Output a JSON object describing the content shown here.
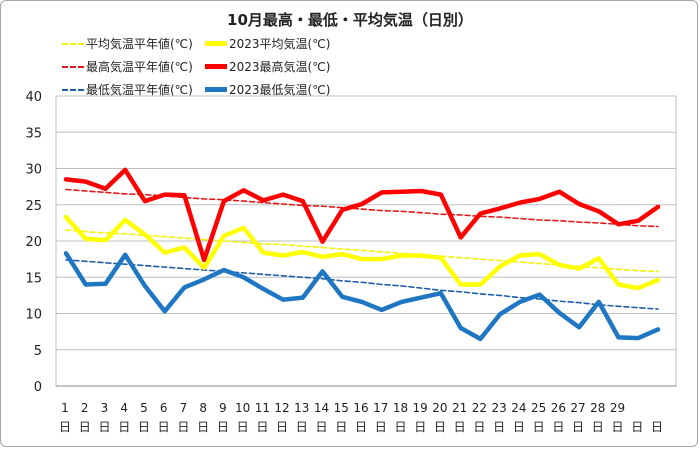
{
  "chart_data": {
    "type": "line",
    "title": "10月最高・最低・平均気温（日別）",
    "ylim": [
      0,
      40
    ],
    "yticks": [
      0,
      5,
      10,
      15,
      20,
      25,
      30,
      35,
      40
    ],
    "grid": true,
    "legend_position": "top",
    "x_tick_labels": [
      "1",
      "2",
      "3",
      "4",
      "5",
      "6",
      "7",
      "8",
      "9",
      "10",
      "11",
      "12",
      "13",
      "14",
      "15",
      "16",
      "17",
      "18",
      "19",
      "20",
      "21",
      "22",
      "23",
      "24",
      "25",
      "26",
      "27",
      "28",
      "29",
      "",
      ""
    ],
    "x_tick_suffix": "日",
    "series": [
      {
        "name": "平均気温平年値(℃)",
        "color": "#f2f20a",
        "style": "dashed",
        "values": [
          21.5,
          21.3,
          21.1,
          21.0,
          20.8,
          20.6,
          20.4,
          20.2,
          20.0,
          19.8,
          19.6,
          19.5,
          19.3,
          19.1,
          18.9,
          18.7,
          18.5,
          18.3,
          18.1,
          17.9,
          17.7,
          17.5,
          17.3,
          17.1,
          16.9,
          16.7,
          16.5,
          16.3,
          16.1,
          15.9,
          15.8
        ]
      },
      {
        "name": "2023平均気温(℃)",
        "color": "#ffff00",
        "style": "solid",
        "values": [
          23.3,
          20.3,
          20.1,
          22.9,
          20.9,
          18.4,
          19.1,
          16.3,
          20.7,
          21.8,
          18.4,
          18.0,
          18.5,
          17.8,
          18.2,
          17.5,
          17.5,
          18.0,
          18.0,
          17.7,
          14.0,
          14.0,
          16.5,
          18.0,
          18.2,
          16.7,
          16.2,
          17.6,
          14.0,
          13.5,
          14.6
        ]
      },
      {
        "name": "最高気温平年値(℃)",
        "color": "#e31a1c",
        "style": "dashed",
        "values": [
          27.1,
          26.9,
          26.7,
          26.5,
          26.4,
          26.2,
          26.0,
          25.8,
          25.7,
          25.5,
          25.3,
          25.1,
          24.9,
          24.8,
          24.6,
          24.4,
          24.2,
          24.1,
          23.9,
          23.7,
          23.6,
          23.4,
          23.3,
          23.1,
          22.9,
          22.8,
          22.6,
          22.5,
          22.3,
          22.1,
          22.0
        ]
      },
      {
        "name": "2023最高気温(℃)",
        "color": "#ff0000",
        "style": "solid",
        "values": [
          28.5,
          28.2,
          27.2,
          29.8,
          25.5,
          26.4,
          26.3,
          17.4,
          25.5,
          27.0,
          25.6,
          26.4,
          25.5,
          19.9,
          24.3,
          25.1,
          26.7,
          26.8,
          26.9,
          26.4,
          20.5,
          23.8,
          24.5,
          25.3,
          25.8,
          26.8,
          25.1,
          24.1,
          22.3,
          22.8,
          24.7
        ]
      },
      {
        "name": "最低気温平年値(℃)",
        "color": "#1f5fa8",
        "style": "dashed",
        "values": [
          17.4,
          17.2,
          17.0,
          16.8,
          16.6,
          16.4,
          16.2,
          16.0,
          15.8,
          15.6,
          15.4,
          15.2,
          15.0,
          14.8,
          14.5,
          14.3,
          14.0,
          13.8,
          13.5,
          13.2,
          13.0,
          12.7,
          12.5,
          12.2,
          12.0,
          11.7,
          11.5,
          11.2,
          11.0,
          10.8,
          10.6
        ]
      },
      {
        "name": "2023最低気温(℃)",
        "color": "#1f77c4",
        "style": "solid",
        "values": [
          18.3,
          14.0,
          14.1,
          18.1,
          13.8,
          10.3,
          13.6,
          14.7,
          16.0,
          15.0,
          13.4,
          11.9,
          12.2,
          15.8,
          12.3,
          11.6,
          10.5,
          11.6,
          12.2,
          12.8,
          8.0,
          6.5,
          9.9,
          11.6,
          12.6,
          10.1,
          8.1,
          11.6,
          6.7,
          6.6,
          7.8
        ]
      }
    ]
  }
}
